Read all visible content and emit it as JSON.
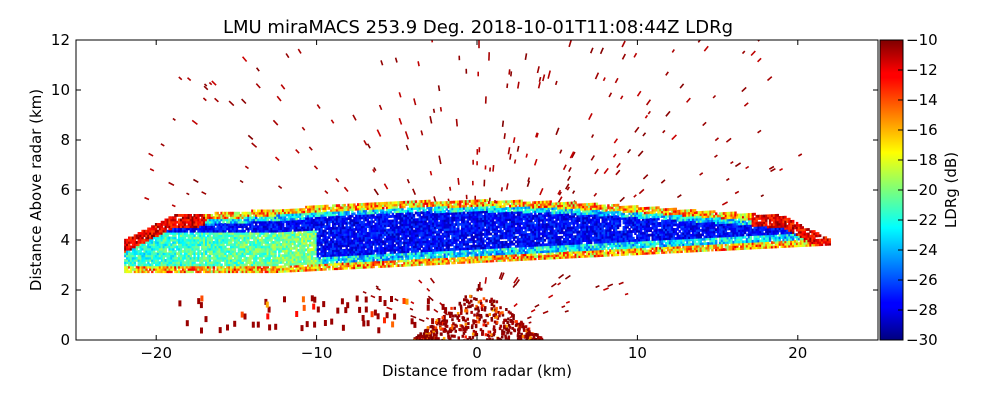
{
  "chart_data": {
    "type": "heatmap",
    "title": "LMU miraMACS 253.9 Deg. 2018-10-01T11:08:44Z  LDRg",
    "xlabel": "Distance from radar (km)",
    "ylabel": "Distance Above radar  (km)",
    "xlim": [
      -25,
      25
    ],
    "ylim": [
      0,
      12
    ],
    "x_ticks": [
      -20,
      -10,
      0,
      10,
      20
    ],
    "x_tick_labels": [
      "−20",
      "−10",
      "0",
      "10",
      "20"
    ],
    "y_ticks": [
      0,
      2,
      4,
      6,
      8,
      10,
      12
    ],
    "y_tick_labels": [
      "0",
      "2",
      "4",
      "6",
      "8",
      "10",
      "12"
    ],
    "colorbar": {
      "label": "LDRg (dB)",
      "vmin": -30,
      "vmax": -10,
      "ticks": [
        -10,
        -12,
        -14,
        -16,
        -18,
        -20,
        -22,
        -24,
        -26,
        -28,
        -30
      ],
      "tick_labels": [
        "−10",
        "−12",
        "−14",
        "−16",
        "−18",
        "−20",
        "−22",
        "−24",
        "−26",
        "−28",
        "−30"
      ],
      "colormap": "jet"
    },
    "scan": {
      "azimuth_deg": 253.9,
      "timestamp": "2018-10-01T11:08:44Z",
      "max_range_km": 22,
      "scan_edge_elevation_km": [
        2.4,
        3.8
      ]
    },
    "features": [
      {
        "name": "cloud layer",
        "x_range_km": [
          -22,
          22
        ],
        "base_km": 2.7,
        "top_km": 5.2,
        "core_ldr_db": -29,
        "edge_ldr_db": -12
      },
      {
        "name": "sparse high-LDR clutter aloft",
        "height_range_km": [
          0,
          12
        ],
        "ldr_db": -10
      },
      {
        "name": "near-radar clutter",
        "x_range_km": [
          -4,
          4
        ],
        "height_range_km": [
          0,
          2.2
        ],
        "ldr_db": -10
      }
    ]
  }
}
